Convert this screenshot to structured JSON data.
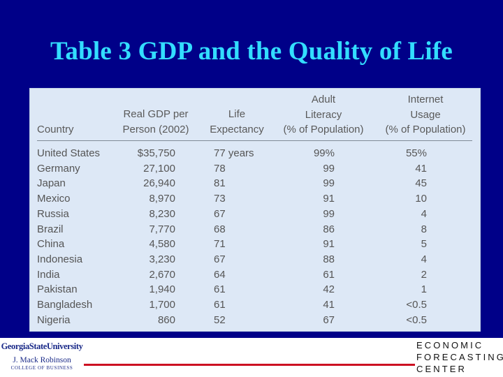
{
  "slide": {
    "title": "Table 3 GDP and the Quality of Life"
  },
  "table": {
    "headers": {
      "country": "Country",
      "gdp": "Real GDP per\nPerson (2002)",
      "life": "Life\nExpectancy",
      "literacy": "Adult\nLiteracy\n(% of Population)",
      "internet": "Internet\nUsage\n(% of Population)"
    },
    "rows": [
      {
        "country": "United States",
        "gdp": "$35,750",
        "life": "77 years",
        "literacy": "99%",
        "internet": "55%"
      },
      {
        "country": "Germany",
        "gdp": "27,100",
        "life": "78",
        "literacy": "99",
        "internet": "41"
      },
      {
        "country": "Japan",
        "gdp": "26,940",
        "life": "81",
        "literacy": "99",
        "internet": "45"
      },
      {
        "country": "Mexico",
        "gdp": "8,970",
        "life": "73",
        "literacy": "91",
        "internet": "10"
      },
      {
        "country": "Russia",
        "gdp": "8,230",
        "life": "67",
        "literacy": "99",
        "internet": "4"
      },
      {
        "country": "Brazil",
        "gdp": "7,770",
        "life": "68",
        "literacy": "86",
        "internet": "8"
      },
      {
        "country": "China",
        "gdp": "4,580",
        "life": "71",
        "literacy": "91",
        "internet": "5"
      },
      {
        "country": "Indonesia",
        "gdp": "3,230",
        "life": "67",
        "literacy": "88",
        "internet": "4"
      },
      {
        "country": "India",
        "gdp": "2,670",
        "life": "64",
        "literacy": "61",
        "internet": "2"
      },
      {
        "country": "Pakistan",
        "gdp": "1,940",
        "life": "61",
        "literacy": "42",
        "internet": "1"
      },
      {
        "country": "Bangladesh",
        "gdp": "1,700",
        "life": "61",
        "literacy": "41",
        "internet": "<0.5"
      },
      {
        "country": "Nigeria",
        "gdp": "860",
        "life": "52",
        "literacy": "67",
        "internet": "<0.5"
      }
    ]
  },
  "footer": {
    "gsu_logo": {
      "line1": "GeorgiaStateUniversity",
      "line2": "J. Mack Robinson",
      "line3": "COLLEGE OF BUSINESS"
    },
    "efc_logo": {
      "line1": "ECONOMIC",
      "line2": "FORECASTING",
      "line3": "CENTER"
    }
  },
  "colors": {
    "background": "#000088",
    "title": "#33ddff",
    "panel": "#dde8f6",
    "rule": "#cc1122"
  }
}
